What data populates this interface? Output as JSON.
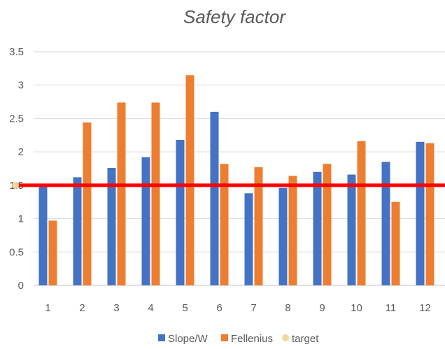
{
  "chart_data": {
    "type": "bar",
    "title": "Safety factor",
    "xlabel": "",
    "ylabel": "",
    "categories": [
      "1",
      "2",
      "3",
      "4",
      "5",
      "6",
      "7",
      "8",
      "9",
      "10",
      "11",
      "12"
    ],
    "series": [
      {
        "name": "Slope/W",
        "color": "#4472C4",
        "values": [
          1.5,
          1.62,
          1.76,
          1.92,
          2.18,
          2.6,
          1.38,
          1.46,
          1.7,
          1.66,
          1.85,
          2.15
        ]
      },
      {
        "name": "Fellenius",
        "color": "#ED7D31",
        "values": [
          0.97,
          2.44,
          2.74,
          2.74,
          3.15,
          1.82,
          1.77,
          1.64,
          1.82,
          2.16,
          1.25,
          2.13
        ]
      }
    ],
    "target": {
      "name": "target",
      "value": 1.5,
      "line_color": "#FF0000",
      "marker_color": "#F4D6A0"
    },
    "ylim": [
      0,
      3.5
    ],
    "yticks": [
      "0",
      "0.5",
      "1",
      "1.5",
      "2",
      "2.5",
      "3",
      "3.5"
    ],
    "grid": true,
    "legend_position": "bottom"
  }
}
